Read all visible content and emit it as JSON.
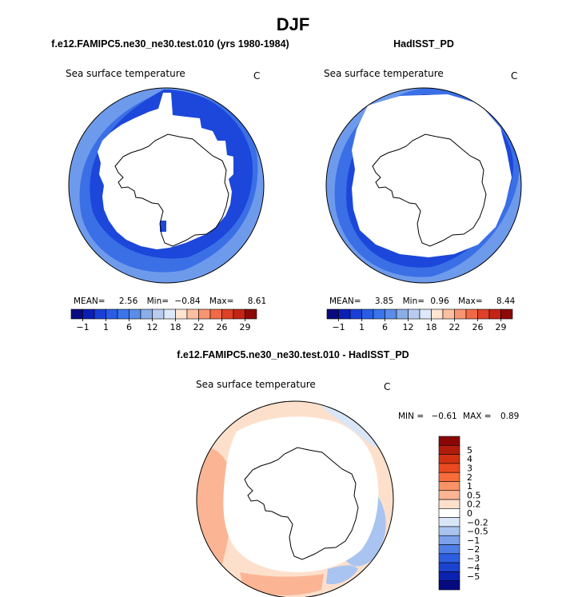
{
  "season": "DJF",
  "panels": [
    {
      "title": "f.e12.FAMIPC5.ne30_ne30.test.010 (yrs 1980-1984)",
      "variable": "Sea surface temperature",
      "units": "C",
      "stats": {
        "mean_label": "MEAN=",
        "mean": "2.56",
        "min_label": "Min=",
        "min": "−0.84",
        "max_label": "Max=",
        "max": "8.61"
      }
    },
    {
      "title": "HadISST_PD",
      "variable": "Sea surface temperature",
      "units": "C",
      "stats": {
        "mean_label": "MEAN=",
        "mean": "3.85",
        "min_label": "Min=",
        "min": "0.96",
        "max_label": "Max=",
        "max": "8.44"
      }
    }
  ],
  "diff": {
    "title": "f.e12.FAMIPC5.ne30_ne30.test.010 - HadISST_PD",
    "variable": "Sea surface temperature",
    "units": "C",
    "stats": {
      "min_label": "MIN =",
      "min": "−0.61",
      "max_label": "MAX =",
      "max": "0.89"
    }
  },
  "chart_data": [
    {
      "type": "heatmap",
      "projection": "south polar stereographic",
      "title": "f.e12.FAMIPC5.ne30_ne30.test.010 (yrs 1980-1984)",
      "variable": "Sea surface temperature",
      "units": "C",
      "mean": 2.56,
      "min": -0.84,
      "max": 8.61,
      "colorbar": {
        "labels": [
          "−1",
          "1",
          "6",
          "12",
          "18",
          "22",
          "26",
          "29"
        ],
        "colors": [
          "#0a0a80",
          "#0b1fb4",
          "#1a3fd6",
          "#2a5de6",
          "#3c74ea",
          "#5a8ce8",
          "#8aaee8",
          "#b8ccf0",
          "#dde8f8",
          "#ffe4d0",
          "#fcc0a0",
          "#f89470",
          "#f06a48",
          "#e04028",
          "#c42414",
          "#8c0a08"
        ]
      },
      "fields": [
        {
          "name": "sea ice (no data)",
          "color": "#ffffff"
        },
        {
          "name": "coldest band near ice edge",
          "color": "#1c47da"
        },
        {
          "name": "mid band",
          "color": "#3a6fe6"
        },
        {
          "name": "warmest band at outer edge",
          "color": "#6e9aec"
        }
      ]
    },
    {
      "type": "heatmap",
      "projection": "south polar stereographic",
      "title": "HadISST_PD",
      "variable": "Sea surface temperature",
      "units": "C",
      "mean": 3.85,
      "min": 0.96,
      "max": 8.44,
      "colorbar": {
        "labels": [
          "−1",
          "1",
          "6",
          "12",
          "18",
          "22",
          "26",
          "29"
        ],
        "colors": [
          "#0a0a80",
          "#0b1fb4",
          "#1a3fd6",
          "#2a5de6",
          "#3c74ea",
          "#5a8ce8",
          "#8aaee8",
          "#b8ccf0",
          "#dde8f8",
          "#ffe4d0",
          "#fcc0a0",
          "#f89470",
          "#f06a48",
          "#e04028",
          "#c42414",
          "#8c0a08"
        ]
      },
      "fields": [
        {
          "name": "sea ice (no data)",
          "color": "#ffffff"
        },
        {
          "name": "coldest band near ice edge",
          "color": "#1c47da"
        },
        {
          "name": "mid band",
          "color": "#3a6fe6"
        },
        {
          "name": "warmest band at outer edge",
          "color": "#6e9aec"
        }
      ]
    },
    {
      "type": "heatmap",
      "projection": "south polar stereographic",
      "title": "f.e12.FAMIPC5.ne30_ne30.test.010 - HadISST_PD",
      "variable": "Sea surface temperature",
      "units": "C",
      "min": -0.61,
      "max": 0.89,
      "colorbar": {
        "orientation": "vertical",
        "labels": [
          "5",
          "4",
          "3",
          "2",
          "1",
          "0.5",
          "0.2",
          "0",
          "−0.2",
          "−0.5",
          "−1",
          "−2",
          "−3",
          "−4",
          "−5"
        ],
        "colors": [
          "#8a0606",
          "#b11c0a",
          "#d23212",
          "#ea4a20",
          "#f66c3a",
          "#fa9268",
          "#fbb594",
          "#fde0cc",
          "#ffffff",
          "#d8e6f8",
          "#a9c4f0",
          "#7ba1ea",
          "#4f7fe6",
          "#2d5ee2",
          "#1b43d0",
          "#0c22b0",
          "#060a80"
        ]
      },
      "fields": [
        {
          "name": "warm bias (0.2 to 0.5)",
          "color": "#fbb594"
        },
        {
          "name": "slight warm bias (0 to 0.2)",
          "color": "#fde0cc"
        },
        {
          "name": "slight cool bias (-0.2 to 0)",
          "color": "#d8e6f8"
        },
        {
          "name": "cool bias (-0.5 to -0.2)",
          "color": "#a9c4f0"
        }
      ]
    }
  ]
}
